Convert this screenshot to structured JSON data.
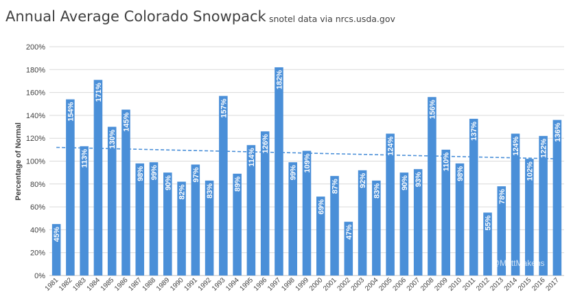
{
  "chart_data": {
    "type": "bar",
    "title": "Annual Average Colorado Snowpack",
    "subtitle": "snotel data via nrcs.usda.gov",
    "xlabel": "",
    "ylabel": "Percentage of Normal",
    "ylim": [
      0,
      200
    ],
    "y_ticks": [
      "0%",
      "20%",
      "40%",
      "60%",
      "80%",
      "100%",
      "120%",
      "140%",
      "160%",
      "180%",
      "200%"
    ],
    "grid": true,
    "legend": "none",
    "categories": [
      "1981",
      "1982",
      "1983",
      "1984",
      "1985",
      "1986",
      "1987",
      "1988",
      "1989",
      "1990",
      "1991",
      "1992",
      "1993",
      "1994",
      "1995",
      "1996",
      "1997",
      "1998",
      "1999",
      "2000",
      "2001",
      "2002",
      "2003",
      "2004",
      "2005",
      "2006",
      "2007",
      "2008",
      "2009",
      "2010",
      "2011",
      "2012",
      "2013",
      "2014",
      "2015",
      "2016",
      "2017"
    ],
    "values": [
      45,
      154,
      113,
      171,
      130,
      145,
      98,
      99,
      90,
      82,
      97,
      83,
      157,
      89,
      114,
      126,
      182,
      99,
      109,
      69,
      87,
      47,
      92,
      83,
      124,
      90,
      93,
      156,
      110,
      98,
      137,
      55,
      78,
      124,
      102,
      122,
      136
    ],
    "value_labels": [
      "45%",
      "154%",
      "113%",
      "171%",
      "130%",
      "145%",
      "98%",
      "99%",
      "90%",
      "82%",
      "97%",
      "83%",
      "157%",
      "89%",
      "114%",
      "126%",
      "182%",
      "99%",
      "109%",
      "69%",
      "87%",
      "47%",
      "92%",
      "83%",
      "124%",
      "90%",
      "93%",
      "156%",
      "110%",
      "98%",
      "137%",
      "55%",
      "78%",
      "124%",
      "102%",
      "122%",
      "136%"
    ],
    "trendline": {
      "style": "dashed-linear",
      "start_value": 112,
      "end_value": 102
    },
    "colors": {
      "bar": "#4a8fd8",
      "trend": "#4a8fd8",
      "grid": "#d9d9d9",
      "text": "#404040"
    }
  },
  "watermark": "@MattMakens"
}
